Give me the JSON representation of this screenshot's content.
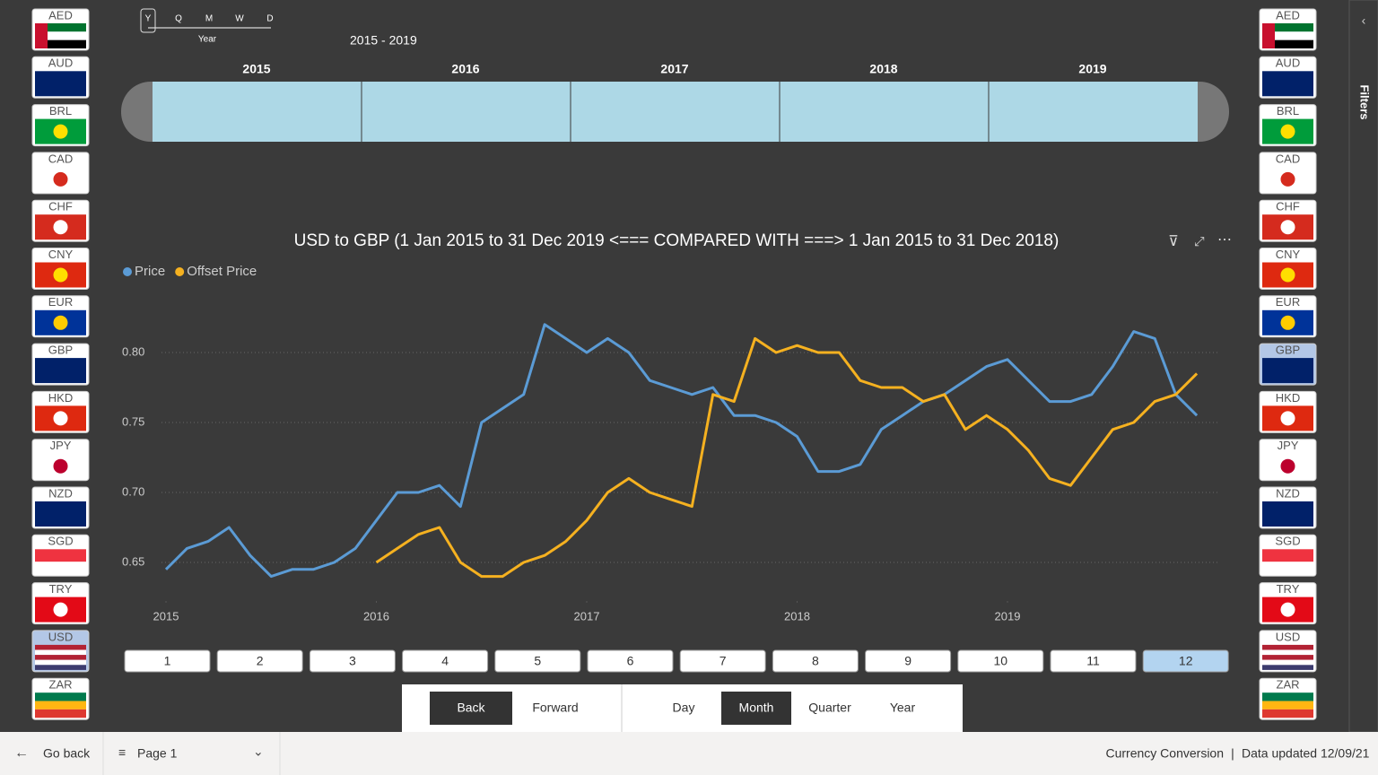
{
  "period_slicer": {
    "levels": [
      "Y",
      "Q",
      "M",
      "W",
      "D"
    ],
    "level_name": "Year",
    "range": "2015 - 2019",
    "years": [
      "2015",
      "2016",
      "2017",
      "2018",
      "2019"
    ]
  },
  "currencies": [
    "AED",
    "AUD",
    "BRL",
    "CAD",
    "CHF",
    "CNY",
    "EUR",
    "GBP",
    "HKD",
    "JPY",
    "NZD",
    "SGD",
    "TRY",
    "USD",
    "ZAR"
  ],
  "left_selected": "USD",
  "right_selected": "GBP",
  "chart_data": {
    "type": "line",
    "title": "USD to GBP (1 Jan 2015 to 31 Dec 2019 <=== COMPARED WITH ===> 1 Jan 2015 to 31 Dec 2018)",
    "x": [
      2015.0,
      2015.1,
      2015.2,
      2015.3,
      2015.4,
      2015.5,
      2015.6,
      2015.7,
      2015.8,
      2015.9,
      2016.0,
      2016.1,
      2016.2,
      2016.3,
      2016.4,
      2016.5,
      2016.6,
      2016.7,
      2016.8,
      2016.9,
      2017.0,
      2017.1,
      2017.2,
      2017.3,
      2017.4,
      2017.5,
      2017.6,
      2017.7,
      2017.8,
      2017.9,
      2018.0,
      2018.1,
      2018.2,
      2018.3,
      2018.4,
      2018.5,
      2018.6,
      2018.7,
      2018.8,
      2018.9,
      2019.0,
      2019.1,
      2019.2,
      2019.3,
      2019.4,
      2019.5,
      2019.6,
      2019.7,
      2019.8,
      2019.9
    ],
    "series": [
      {
        "name": "Price",
        "color": "#5b9bd5",
        "values": [
          0.645,
          0.66,
          0.665,
          0.675,
          0.655,
          0.64,
          0.645,
          0.645,
          0.65,
          0.66,
          0.68,
          0.7,
          0.7,
          0.705,
          0.69,
          0.75,
          0.76,
          0.77,
          0.82,
          0.81,
          0.8,
          0.81,
          0.8,
          0.78,
          0.775,
          0.77,
          0.775,
          0.755,
          0.755,
          0.75,
          0.74,
          0.715,
          0.715,
          0.72,
          0.745,
          0.755,
          0.765,
          0.77,
          0.78,
          0.79,
          0.795,
          0.78,
          0.765,
          0.765,
          0.77,
          0.79,
          0.815,
          0.81,
          0.77,
          0.755
        ]
      },
      {
        "name": "Offset Price",
        "color": "#f5b120",
        "values": [
          null,
          null,
          null,
          null,
          null,
          null,
          null,
          null,
          null,
          null,
          0.65,
          0.66,
          0.67,
          0.675,
          0.65,
          0.64,
          0.64,
          0.65,
          0.655,
          0.665,
          0.68,
          0.7,
          0.71,
          0.7,
          0.695,
          0.69,
          0.77,
          0.765,
          0.81,
          0.8,
          0.805,
          0.8,
          0.8,
          0.78,
          0.775,
          0.775,
          0.765,
          0.77,
          0.745,
          0.755,
          0.745,
          0.73,
          0.71,
          0.705,
          0.725,
          0.745,
          0.75,
          0.765,
          0.77,
          0.785
        ]
      }
    ],
    "xlim": [
      2015,
      2020
    ],
    "xticks": [
      2015,
      2016,
      2017,
      2018,
      2019
    ],
    "ylim": [
      0.625,
      0.835
    ],
    "yticks": [
      0.65,
      0.75,
      {
        "value": 0.7,
        "label": "0.70"
      },
      {
        "value": 0.8,
        "label": "0.80"
      }
    ],
    "grid": true
  },
  "month_buttons": [
    "1",
    "2",
    "3",
    "4",
    "5",
    "6",
    "7",
    "8",
    "9",
    "10",
    "11",
    "12"
  ],
  "month_selected": "12",
  "nav_buttons": [
    "Back",
    "Forward"
  ],
  "nav_selected": "Back",
  "granularity": [
    "Day",
    "Month",
    "Quarter",
    "Year"
  ],
  "granularity_selected": "Month",
  "status_bar": {
    "go_back": "Go back",
    "page": "Page 1",
    "report": "Currency Conversion",
    "updated": "Data updated 12/09/21"
  },
  "filters_pane": "Filters"
}
